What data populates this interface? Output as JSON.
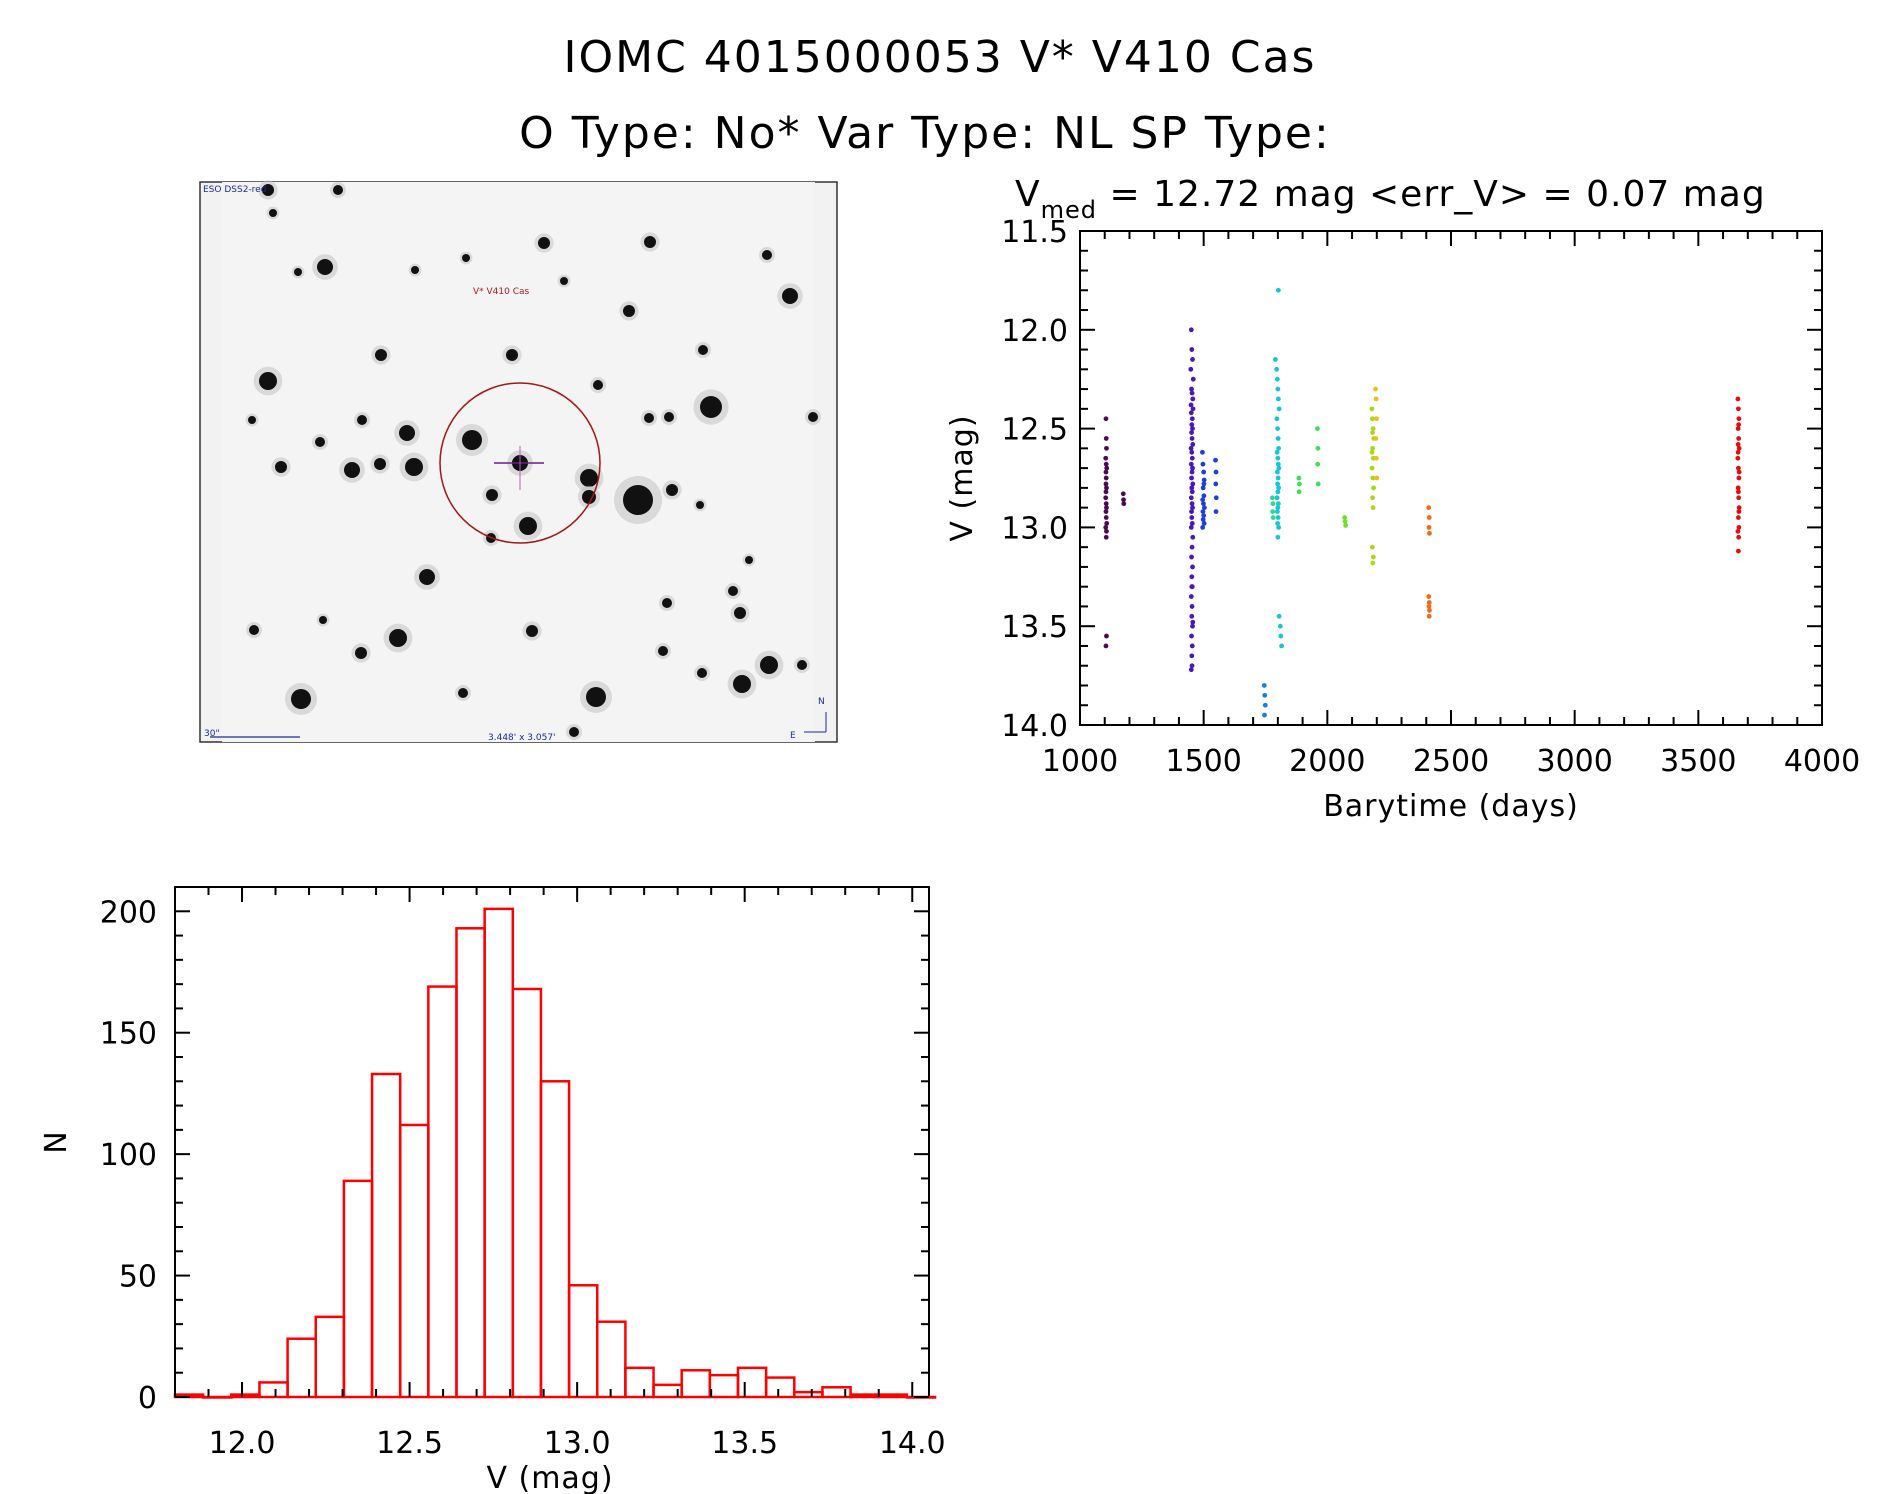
{
  "header": {
    "title_line1": "IOMC 4015000053   V* V410 Cas",
    "title_line2": "O Type: No*  Var Type: NL  SP Type:"
  },
  "sky_image": {
    "survey_label": "ESO DSS2-red",
    "target_label": "V* V410 Cas",
    "scale_label": "30\"",
    "size_label": "3.448' x 3.057'",
    "compass_n": "N",
    "compass_e": "E"
  },
  "chart_data": [
    {
      "id": "lightcurve",
      "type": "scatter",
      "title_prefix": "V",
      "title_subscript": "med",
      "title_rest": " = 12.72 mag <err_V> = 0.07 mag",
      "xlabel": "Barytime (days)",
      "ylabel": "V (mag)",
      "xlim": [
        1000,
        4000
      ],
      "ylim": [
        14.0,
        11.5
      ],
      "y_reversed": true,
      "xticks": [
        1000,
        1500,
        2000,
        2500,
        3000,
        3500,
        4000
      ],
      "yticks": [
        11.5,
        12.0,
        12.5,
        13.0,
        13.5,
        14.0
      ],
      "ytick_labels": [
        "11.5",
        "12.0",
        "12.5",
        "13.0",
        "13.5",
        "14.0"
      ],
      "groups": [
        {
          "color": "#4b0a52",
          "x": [
            1105,
            1106,
            1107,
            1104,
            1108,
            1105,
            1106,
            1107,
            1105,
            1104,
            1106,
            1107,
            1105,
            1106,
            1108,
            1104,
            1107,
            1106,
            1105,
            1106,
            1107,
            1105
          ],
          "y": [
            12.45,
            12.55,
            12.6,
            12.65,
            12.7,
            12.72,
            12.75,
            12.8,
            12.82,
            12.85,
            12.88,
            12.9,
            12.92,
            12.95,
            12.98,
            13.0,
            13.02,
            13.05,
            12.78,
            12.68,
            13.55,
            13.6
          ]
        },
        {
          "color": "#4b0a52",
          "x": [
            1175,
            1176,
            1177
          ],
          "y": [
            12.83,
            12.86,
            12.88
          ]
        },
        {
          "color": "#4a17b8",
          "x": [
            1450,
            1452,
            1455,
            1448,
            1458,
            1451,
            1453,
            1456,
            1449,
            1457,
            1450,
            1454,
            1452,
            1455,
            1451,
            1453,
            1456,
            1449,
            1452,
            1454,
            1450,
            1455,
            1453,
            1451,
            1456,
            1452,
            1454,
            1450,
            1453,
            1455,
            1451,
            1452,
            1454,
            1450,
            1456,
            1453,
            1451,
            1455,
            1452,
            1454,
            1450,
            1453,
            1452,
            1455,
            1451,
            1454,
            1452,
            1453,
            1450,
            1456,
            1452
          ],
          "y": [
            12.0,
            12.1,
            12.15,
            12.2,
            12.25,
            12.3,
            12.32,
            12.35,
            12.38,
            12.4,
            12.42,
            12.45,
            12.48,
            12.5,
            12.52,
            12.55,
            12.58,
            12.6,
            12.62,
            12.65,
            12.68,
            12.7,
            12.72,
            12.75,
            12.78,
            12.8,
            12.82,
            12.85,
            12.88,
            12.9,
            12.92,
            12.95,
            12.98,
            13.0,
            13.05,
            13.1,
            13.15,
            13.2,
            13.25,
            13.3,
            13.35,
            13.4,
            13.45,
            13.5,
            13.55,
            13.6,
            13.65,
            13.7,
            13.72,
            13.48,
            13.3
          ]
        },
        {
          "color": "#1f3fd8",
          "x": [
            1495,
            1497,
            1500,
            1502,
            1498,
            1501,
            1496,
            1499,
            1503,
            1497,
            1500,
            1498,
            1502,
            1496,
            1501
          ],
          "y": [
            12.62,
            12.68,
            12.72,
            12.76,
            12.8,
            12.84,
            12.86,
            12.88,
            12.9,
            12.92,
            12.94,
            12.96,
            12.98,
            13.0,
            12.78
          ]
        },
        {
          "color": "#1f3fd8",
          "x": [
            1548,
            1550,
            1549,
            1551,
            1550
          ],
          "y": [
            12.66,
            12.72,
            12.78,
            12.85,
            12.92
          ]
        },
        {
          "color": "#1a7fe0",
          "x": [
            1745,
            1747,
            1749,
            1746
          ],
          "y": [
            13.8,
            13.85,
            13.9,
            13.95
          ]
        },
        {
          "color": "#16c5d8",
          "x": [
            1790,
            1795,
            1798,
            1800,
            1802,
            1805,
            1796,
            1799,
            1801,
            1803,
            1797,
            1800,
            1802,
            1804,
            1798,
            1801,
            1799,
            1803,
            1800,
            1797,
            1802,
            1800,
            1798,
            1801,
            1799,
            1803,
            1800,
            1802,
            1805,
            1810,
            1812,
            1815
          ],
          "y": [
            12.15,
            12.2,
            12.25,
            12.3,
            12.35,
            12.4,
            12.45,
            12.5,
            12.55,
            12.6,
            12.62,
            12.65,
            12.68,
            12.7,
            12.72,
            12.75,
            12.78,
            12.8,
            12.82,
            12.85,
            12.88,
            12.9,
            12.92,
            12.95,
            12.98,
            13.0,
            13.05,
            11.8,
            13.45,
            13.5,
            13.55,
            13.6
          ]
        },
        {
          "color": "#2fd890",
          "x": [
            1778,
            1780,
            1779,
            1781
          ],
          "y": [
            12.85,
            12.88,
            12.92,
            12.95
          ]
        },
        {
          "color": "#3ce05a",
          "x": [
            1885,
            1887,
            1886
          ],
          "y": [
            12.75,
            12.78,
            12.82
          ]
        },
        {
          "color": "#3ce05a",
          "x": [
            1960,
            1962,
            1961,
            1963
          ],
          "y": [
            12.5,
            12.6,
            12.68,
            12.78
          ]
        },
        {
          "color": "#6ee02a",
          "x": [
            2070,
            2072,
            2074
          ],
          "y": [
            12.95,
            12.97,
            12.99
          ]
        },
        {
          "color": "#a8d818",
          "x": [
            2180,
            2182,
            2185,
            2188,
            2183,
            2186,
            2181,
            2184,
            2187,
            2183,
            2185,
            2182,
            2186,
            2184,
            2181,
            2183
          ],
          "y": [
            12.4,
            12.45,
            12.5,
            12.55,
            12.6,
            12.65,
            12.7,
            12.75,
            12.8,
            12.85,
            12.9,
            13.1,
            13.15,
            13.18,
            12.62,
            12.52
          ]
        },
        {
          "color": "#f0c010",
          "x": [
            2195,
            2197,
            2199,
            2196,
            2198,
            2200
          ],
          "y": [
            12.3,
            12.35,
            12.45,
            12.55,
            12.65,
            12.75
          ]
        },
        {
          "color": "#f06a1a",
          "x": [
            2410,
            2412,
            2411,
            2413,
            2410,
            2412,
            2411,
            2413,
            2412
          ],
          "y": [
            12.9,
            12.95,
            13.0,
            13.03,
            13.35,
            13.38,
            13.4,
            13.42,
            13.45
          ]
        },
        {
          "color": "#e01010",
          "x": [
            3660,
            3662,
            3664,
            3661,
            3663,
            3665,
            3660,
            3662,
            3664,
            3661,
            3663,
            3665,
            3662,
            3664,
            3660,
            3663,
            3661,
            3665,
            3662,
            3664,
            3663,
            3661,
            3662
          ],
          "y": [
            12.35,
            12.4,
            12.45,
            12.5,
            12.55,
            12.6,
            12.65,
            12.7,
            12.75,
            12.8,
            12.85,
            12.9,
            12.95,
            13.0,
            13.02,
            13.05,
            12.62,
            12.72,
            12.82,
            12.92,
            12.48,
            12.58,
            13.12
          ]
        }
      ]
    },
    {
      "id": "histogram",
      "type": "bar",
      "xlabel": "V (mag)",
      "ylabel": "N",
      "xlim": [
        11.8,
        14.05
      ],
      "ylim": [
        0,
        210
      ],
      "xticks": [
        12.0,
        12.5,
        13.0,
        13.5,
        14.0
      ],
      "xtick_labels": [
        "12.0",
        "12.5",
        "13.0",
        "13.5",
        "14.0"
      ],
      "yticks": [
        0,
        50,
        100,
        150,
        200
      ],
      "bar_color": "#ff0000",
      "bin_start": 11.8,
      "bin_width": 0.084,
      "values": [
        1,
        0,
        1,
        6,
        24,
        33,
        89,
        133,
        112,
        169,
        193,
        201,
        168,
        130,
        46,
        31,
        12,
        5,
        11,
        9,
        12,
        8,
        2,
        4,
        1,
        1,
        0
      ]
    }
  ]
}
